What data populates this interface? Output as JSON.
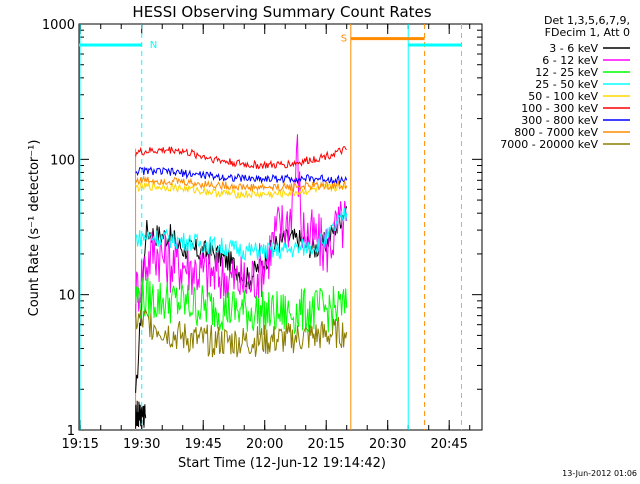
{
  "chart_data": {
    "type": "line",
    "title": "HESSI Observing Summary Count Rates",
    "xlabel": "Start Time (12-Jun-12 19:14:42)",
    "ylabel": "Count Rate (s⁻¹ detector⁻¹)",
    "y_scale": "log",
    "ylim": [
      1,
      1000
    ],
    "y_ticks": [
      {
        "value": 1,
        "label": "1"
      },
      {
        "value": 10,
        "label": "10"
      },
      {
        "value": 100,
        "label": "100"
      },
      {
        "value": 1000,
        "label": "1000"
      }
    ],
    "xlim": [
      "19:14:42",
      "20:53:00"
    ],
    "x_ticks": [
      {
        "value": "19:15",
        "label": "19:15"
      },
      {
        "value": "19:30",
        "label": "19:30"
      },
      {
        "value": "19:45",
        "label": "19:45"
      },
      {
        "value": "20:00",
        "label": "20:00"
      },
      {
        "value": "20:15",
        "label": "20:15"
      },
      {
        "value": "20:30",
        "label": "20:30"
      },
      {
        "value": "20:45",
        "label": "20:45"
      }
    ],
    "legend_header": [
      "Det 1,3,5,6,7,9,",
      "FDecim 1, Att 0"
    ],
    "legend_position": "right",
    "series": [
      {
        "name": "3 - 6 keV",
        "color": "#000000",
        "x": [
          "19:28:30",
          "19:31:00",
          "19:33:00",
          "19:37:00",
          "19:40:00",
          "19:44:00",
          "19:48:00",
          "19:52:00",
          "19:56:00",
          "20:00:00",
          "20:03:00",
          "20:06:00",
          "20:09:00",
          "20:12:00",
          "20:15:00",
          "20:17:30",
          "20:20:00"
        ],
        "y": [
          1.6,
          30,
          28,
          27,
          22,
          21,
          20,
          17,
          13,
          18,
          24,
          26,
          25,
          22,
          24,
          33,
          45
        ]
      },
      {
        "name": "6 - 12 keV",
        "color": "#ff00ff",
        "x": [
          "19:28:30",
          "19:31:00",
          "19:33:00",
          "19:37:00",
          "19:40:00",
          "19:44:00",
          "19:48:00",
          "19:52:00",
          "19:56:00",
          "20:00:00",
          "20:03:00",
          "20:06:00",
          "20:08:00",
          "20:09:00",
          "20:12:00",
          "20:15:00",
          "20:17:30",
          "20:20:00"
        ],
        "y": [
          10,
          17,
          22,
          17,
          17,
          15,
          14,
          13,
          12,
          17,
          30,
          35,
          110,
          30,
          26,
          22,
          30,
          35
        ]
      },
      {
        "name": "12 - 25 keV",
        "color": "#00ff00",
        "x": [
          "19:28:30",
          "19:32:00",
          "19:36:00",
          "19:40:00",
          "19:44:00",
          "19:48:00",
          "19:52:00",
          "19:56:00",
          "20:00:00",
          "20:04:00",
          "20:08:00",
          "20:12:00",
          "20:16:00",
          "20:20:00"
        ],
        "y": [
          9.5,
          9.3,
          9,
          8.7,
          8.3,
          8,
          7.8,
          7.5,
          7.3,
          7.2,
          7.5,
          7.6,
          7.8,
          8
        ]
      },
      {
        "name": "25 - 50 keV",
        "color": "#00ffff",
        "x": [
          "19:28:30",
          "19:32:00",
          "19:36:00",
          "19:40:00",
          "19:44:00",
          "19:48:00",
          "19:52:00",
          "19:56:00",
          "20:00:00",
          "20:04:00",
          "20:08:00",
          "20:12:00",
          "20:15:00",
          "20:17:00",
          "20:20:00"
        ],
        "y": [
          26,
          27,
          26,
          25,
          24,
          23,
          22,
          21,
          21,
          21,
          22,
          23,
          26,
          31,
          40
        ]
      },
      {
        "name": "50 - 100 keV",
        "color": "#ffd700",
        "x": [
          "19:28:30",
          "19:32:00",
          "19:38:00",
          "19:44:00",
          "19:50:00",
          "19:56:00",
          "20:02:00",
          "20:08:00",
          "20:14:00",
          "20:20:00"
        ],
        "y": [
          62,
          63,
          62,
          59,
          56,
          55,
          55,
          57,
          61,
          63
        ]
      },
      {
        "name": "100 - 300 keV",
        "color": "#ff0000",
        "x": [
          "19:28:30",
          "19:32:00",
          "19:38:00",
          "19:44:00",
          "19:50:00",
          "19:56:00",
          "20:02:00",
          "20:08:00",
          "20:14:00",
          "20:20:00"
        ],
        "y": [
          112,
          115,
          118,
          107,
          97,
          91,
          90,
          94,
          104,
          118
        ]
      },
      {
        "name": "300 - 800 keV",
        "color": "#0000ff",
        "x": [
          "19:28:30",
          "19:32:00",
          "19:38:00",
          "19:44:00",
          "19:50:00",
          "19:56:00",
          "20:02:00",
          "20:08:00",
          "20:14:00",
          "20:20:00"
        ],
        "y": [
          82,
          82,
          80,
          77,
          74,
          72,
          72,
          72,
          72,
          70
        ]
      },
      {
        "name": "800 - 7000 keV",
        "color": "#ff8c00",
        "x": [
          "19:28:30",
          "19:32:00",
          "19:38:00",
          "19:44:00",
          "19:50:00",
          "19:56:00",
          "20:02:00",
          "20:08:00",
          "20:14:00",
          "20:20:00"
        ],
        "y": [
          70,
          70,
          69,
          66,
          64,
          62,
          62,
          63,
          64,
          64
        ]
      },
      {
        "name": "7000 - 20000 keV",
        "color": "#8b7d00",
        "x": [
          "19:28:30",
          "19:32:00",
          "19:38:00",
          "19:44:00",
          "19:50:00",
          "19:56:00",
          "20:02:00",
          "20:08:00",
          "20:14:00",
          "20:20:00"
        ],
        "y": [
          6.5,
          6.2,
          5,
          4.6,
          4.5,
          4.5,
          4.6,
          4.8,
          5,
          5.3
        ]
      }
    ],
    "markers": [
      {
        "label": "N",
        "color": "#00ffff",
        "segments": [
          {
            "start": "19:14:42",
            "end": "19:30:00",
            "y": 700
          },
          {
            "start": "20:35:00",
            "end": "20:48:00",
            "y": 700
          }
        ]
      },
      {
        "label": "S",
        "color": "#ff8c00",
        "segments": [
          {
            "start": "20:21:00",
            "end": "20:39:00",
            "y": 780
          }
        ]
      }
    ]
  },
  "footer_date": "13-Jun-2012 01:06"
}
